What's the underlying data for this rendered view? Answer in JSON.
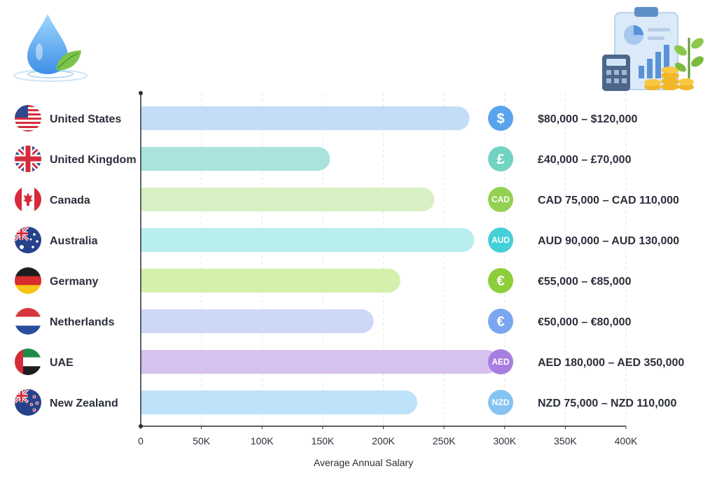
{
  "chart_data": {
    "type": "bar",
    "orientation": "horizontal",
    "title": "",
    "xlabel": "Average Annual Salary",
    "ylabel": "",
    "xlim": [
      0,
      400000
    ],
    "x_ticks": [
      0,
      50000,
      100000,
      150000,
      200000,
      250000,
      300000,
      350000,
      400000
    ],
    "x_tick_labels": [
      "0",
      "50K",
      "100K",
      "150K",
      "200K",
      "250K",
      "300K",
      "350K",
      "400K"
    ],
    "grid": "vertical dashed",
    "categories": [
      "United States",
      "United Kingdom",
      "Canada",
      "Australia",
      "Germany",
      "Netherlands",
      "UAE",
      "New Zealand"
    ],
    "values": [
      271000,
      156000,
      242000,
      275000,
      214000,
      192000,
      295000,
      228000
    ],
    "currency_symbols": [
      "$",
      "£",
      "CAD",
      "AUD",
      "€",
      "€",
      "AED",
      "NZD"
    ],
    "salary_ranges": [
      "$80,000 – $120,000",
      "£40,000 – £70,000",
      "CAD 75,000 – CAD 110,000",
      "AUD 90,000 – AUD 130,000",
      "€55,000 – €85,000",
      "€50,000 – €80,000",
      "AED 180,000 – AED 350,000",
      "NZD 75,000 – NZD 110,000"
    ],
    "bar_colors": [
      "#c4ddf7",
      "#a9e3dc",
      "#d8f1c4",
      "#b8eeec",
      "#d4f0ac",
      "#cdd8f8",
      "#d6c1ef",
      "#bde2fa"
    ],
    "badge_colors": [
      "#5aa4ec",
      "#73d3c2",
      "#93d152",
      "#45cfd6",
      "#8ccf3b",
      "#7ba6f0",
      "#a77ee0",
      "#85c4f2"
    ],
    "flags": [
      "us-flag",
      "uk-flag",
      "canada-flag",
      "australia-flag",
      "germany-flag",
      "netherlands-flag",
      "uae-flag",
      "new-zealand-flag"
    ]
  },
  "decorations": {
    "top_left": "water-drop-with-leaf-icon",
    "top_right": "financial-report-with-calculator-coins-plant-icon"
  }
}
